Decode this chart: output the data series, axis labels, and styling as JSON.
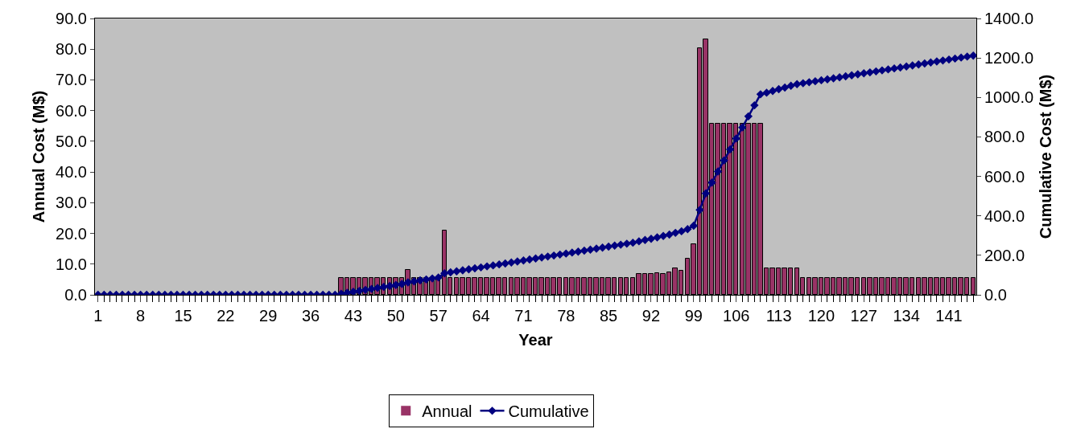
{
  "chart_data": {
    "type": "bar",
    "xlabel": "Year",
    "ylabel": "Annual Cost (M$)",
    "y2label": "Cumulative Cost (M$)",
    "categories": [
      "1",
      null,
      null,
      null,
      null,
      null,
      null,
      "8",
      null,
      null,
      null,
      null,
      null,
      null,
      "15",
      null,
      null,
      null,
      null,
      null,
      null,
      "22",
      null,
      null,
      null,
      null,
      null,
      null,
      "29",
      null,
      null,
      null,
      null,
      null,
      null,
      "36",
      null,
      null,
      null,
      null,
      null,
      null,
      "43",
      null,
      null,
      null,
      null,
      null,
      null,
      "50",
      null,
      null,
      null,
      null,
      null,
      null,
      "57",
      null,
      null,
      null,
      null,
      null,
      null,
      "64",
      null,
      null,
      null,
      null,
      null,
      null,
      "71",
      null,
      null,
      null,
      null,
      null,
      null,
      "78",
      null,
      null,
      null,
      null,
      null,
      null,
      "85",
      null,
      null,
      null,
      null,
      null,
      null,
      "92",
      null,
      null,
      null,
      null,
      null,
      null,
      "99",
      null,
      null,
      null,
      null,
      null,
      null,
      "106",
      null,
      null,
      null,
      null,
      null,
      null,
      "113",
      null,
      null,
      null,
      null,
      null,
      null,
      "120",
      null,
      null,
      null,
      null,
      null,
      null,
      "127",
      null,
      null,
      null,
      null,
      null,
      null,
      "134",
      null,
      null,
      null,
      null,
      null,
      null,
      "141",
      null,
      null,
      null,
      null
    ],
    "series": [
      {
        "name": "Annual",
        "color": "#993366",
        "values": [
          0,
          0,
          0,
          0,
          0,
          0,
          0,
          0,
          0,
          0,
          0,
          0,
          0,
          0,
          0,
          0,
          0,
          0,
          0,
          0,
          0,
          0,
          0,
          0,
          0,
          0,
          0,
          0,
          0,
          0,
          0,
          0,
          0,
          0,
          0,
          0,
          0,
          0,
          0,
          0,
          5.5,
          5.5,
          5.5,
          5.5,
          5.5,
          5.5,
          5.5,
          5.5,
          5.5,
          5.5,
          5.5,
          8.0,
          5.5,
          5.5,
          5.5,
          5.5,
          5.5,
          21.0,
          5.5,
          5.5,
          5.5,
          5.5,
          5.5,
          5.5,
          5.5,
          5.5,
          5.5,
          5.5,
          5.5,
          5.5,
          5.5,
          5.5,
          5.5,
          5.5,
          5.5,
          5.5,
          5.5,
          5.5,
          5.5,
          5.5,
          5.5,
          5.5,
          5.5,
          5.5,
          5.5,
          5.5,
          5.5,
          5.5,
          5.5,
          6.7,
          6.8,
          6.7,
          7.0,
          6.7,
          7.4,
          8.6,
          7.8,
          11.8,
          16.5,
          80.4,
          83.1,
          55.8,
          55.8,
          55.8,
          55.8,
          55.8,
          55.8,
          55.8,
          55.8,
          55.8,
          8.6,
          8.6,
          8.6,
          8.6,
          8.6,
          8.6,
          5.5,
          5.5,
          5.5,
          5.5,
          5.5,
          5.5,
          5.5,
          5.5,
          5.5,
          5.5,
          5.5,
          5.5,
          5.5,
          5.5,
          5.5,
          5.5,
          5.5,
          5.5,
          5.5,
          5.5,
          5.5,
          5.5,
          5.5,
          5.5,
          5.5,
          5.5,
          5.5,
          5.5,
          5.5
        ]
      },
      {
        "name": "Cumulative",
        "type": "line",
        "axis": "y2",
        "color": "#000080",
        "marker": "diamond",
        "values": [
          0,
          0,
          0,
          0,
          0,
          0,
          0,
          0,
          0,
          0,
          0,
          0,
          0,
          0,
          0,
          0,
          0,
          0,
          0,
          0,
          0,
          0,
          0,
          0,
          0,
          0,
          0,
          0,
          0,
          0,
          0,
          0,
          0,
          0,
          0,
          0,
          0,
          0,
          0,
          0,
          5,
          10,
          15,
          20,
          25,
          30,
          35,
          40,
          45,
          50,
          55,
          63,
          68,
          73,
          78,
          83,
          88,
          109,
          114,
          119,
          124,
          129,
          134,
          139,
          144,
          149,
          154,
          159,
          164,
          169,
          174,
          179,
          184,
          189,
          194,
          199,
          204,
          209,
          214,
          219,
          224,
          229,
          234,
          239,
          244,
          249,
          254,
          259,
          264,
          271,
          278,
          284,
          291,
          298,
          305,
          314,
          322,
          333,
          350,
          430,
          514,
          569,
          625,
          681,
          737,
          792,
          848,
          904,
          960,
          1016,
          1024,
          1033,
          1042,
          1050,
          1059,
          1067,
          1072,
          1077,
          1082,
          1087,
          1092,
          1097,
          1102,
          1107,
          1112,
          1117,
          1122,
          1127,
          1132,
          1137,
          1142,
          1147,
          1152,
          1157,
          1162,
          1167,
          1172,
          1177,
          1182,
          1187,
          1192,
          1197,
          1202,
          1207,
          1212
        ]
      }
    ],
    "ylim": [
      0,
      90
    ],
    "yticks": [
      {
        "value": 0,
        "label": "0.0"
      },
      {
        "value": 10,
        "label": "10.0"
      },
      {
        "value": 20,
        "label": "20.0"
      },
      {
        "value": 30,
        "label": "30.0"
      },
      {
        "value": 40,
        "label": "40.0"
      },
      {
        "value": 50,
        "label": "50.0"
      },
      {
        "value": 60,
        "label": "60.0"
      },
      {
        "value": 70,
        "label": "70.0"
      },
      {
        "value": 80,
        "label": "80.0"
      },
      {
        "value": 90,
        "label": "90.0"
      }
    ],
    "y2lim": [
      0,
      1400
    ],
    "y2ticks": [
      {
        "value": 0,
        "label": "0.0"
      },
      {
        "value": 200,
        "label": "200.0"
      },
      {
        "value": 400,
        "label": "400.0"
      },
      {
        "value": 600,
        "label": "600.0"
      },
      {
        "value": 800,
        "label": "800.0"
      },
      {
        "value": 1000,
        "label": "1000.0"
      },
      {
        "value": 1200,
        "label": "1200.0"
      },
      {
        "value": 1400,
        "label": "1400.0"
      }
    ],
    "grid": false,
    "legend": "bottom"
  }
}
